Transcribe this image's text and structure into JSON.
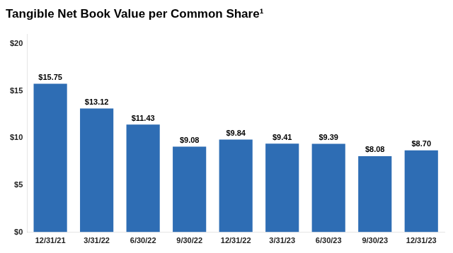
{
  "chart_data": {
    "type": "bar",
    "title": "Tangible Net Book Value per Common Share¹",
    "categories": [
      "12/31/21",
      "3/31/22",
      "6/30/22",
      "9/30/22",
      "12/31/22",
      "3/31/23",
      "6/30/23",
      "9/30/23",
      "12/31/23"
    ],
    "values": [
      15.75,
      13.12,
      11.43,
      9.08,
      9.84,
      9.41,
      9.39,
      8.08,
      8.7
    ],
    "value_labels": [
      "$15.75",
      "$13.12",
      "$11.43",
      "$9.08",
      "$9.84",
      "$9.41",
      "$9.39",
      "$8.08",
      "$8.70"
    ],
    "color": "#2E6DB4",
    "ylim": [
      0,
      21
    ],
    "yticks": [
      {
        "value": 0,
        "label": "$0"
      },
      {
        "value": 5,
        "label": "$5"
      },
      {
        "value": 10,
        "label": "$10"
      },
      {
        "value": 15,
        "label": "$15"
      },
      {
        "value": 20,
        "label": "$20"
      }
    ],
    "grid": false,
    "data_labels": true
  }
}
